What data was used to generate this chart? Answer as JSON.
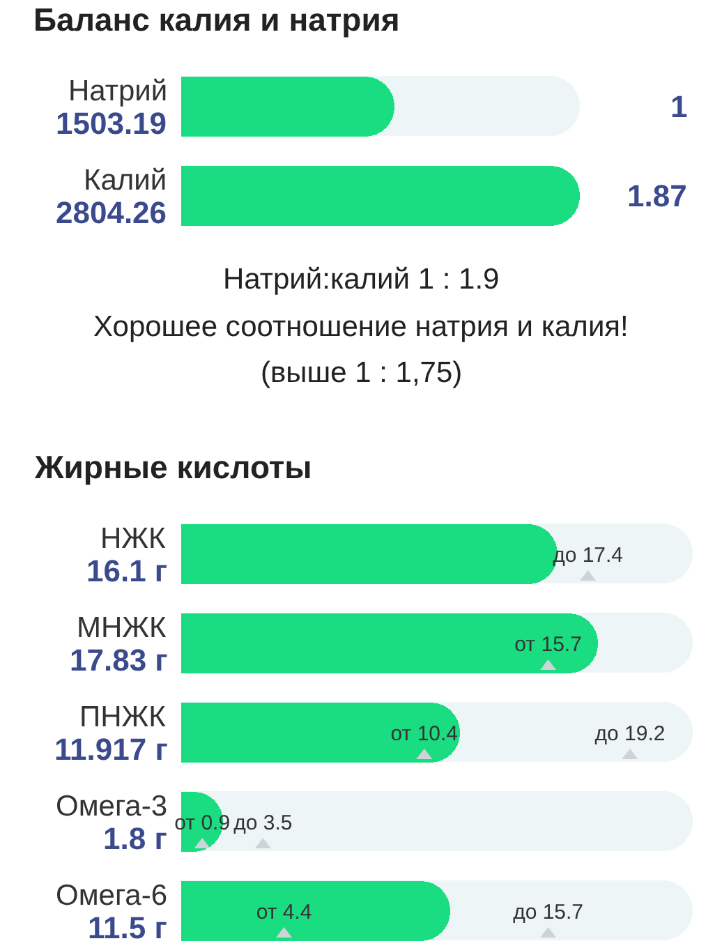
{
  "chart_data": [
    {
      "type": "bar",
      "orientation": "horizontal",
      "title": "Баланс калия и натрия",
      "categories": [
        "Натрий",
        "Калий"
      ],
      "values": [
        1503.19,
        2804.26
      ],
      "value_labels": [
        "1503.19",
        "2804.26"
      ],
      "color": "#1adc80",
      "annotations": [
        "1",
        "1.87",
        "Натрий:калий 1 : 1.9",
        "Хорошее соотношение натрия и калия!",
        "(выше 1 : 1,75)"
      ]
    },
    {
      "type": "bar",
      "orientation": "horizontal",
      "title": "Жирные кислоты",
      "categories": [
        "НЖК",
        "МНЖК",
        "ПНЖК",
        "Омега-3",
        "Омега-6"
      ],
      "series": [
        {
          "color": "#1adc80",
          "values": [
            16.1,
            17.83,
            11.917,
            1.8,
            11.5
          ],
          "value_labels": [
            "16.1 г",
            "17.83 г",
            "11.917 г",
            "1.8 г",
            "11.5 г"
          ]
        },
        {
          "type": "scatter",
          "marker": "triangle",
          "color": "#cdd3d6",
          "x": [
            "НЖК",
            "МНЖК",
            "ПНЖК",
            "ПНЖК",
            "Омега-3",
            "Омега-3",
            "Омега-6",
            "Омега-6"
          ],
          "values": [
            17.4,
            15.7,
            10.4,
            19.2,
            0.9,
            3.5,
            4.4,
            15.7
          ],
          "value_labels": [
            "до 17.4",
            "от 15.7",
            "от 10.4",
            "до 19.2",
            "от 0.9",
            "до 3.5",
            "от 4.4",
            "до 15.7"
          ]
        }
      ]
    }
  ]
}
